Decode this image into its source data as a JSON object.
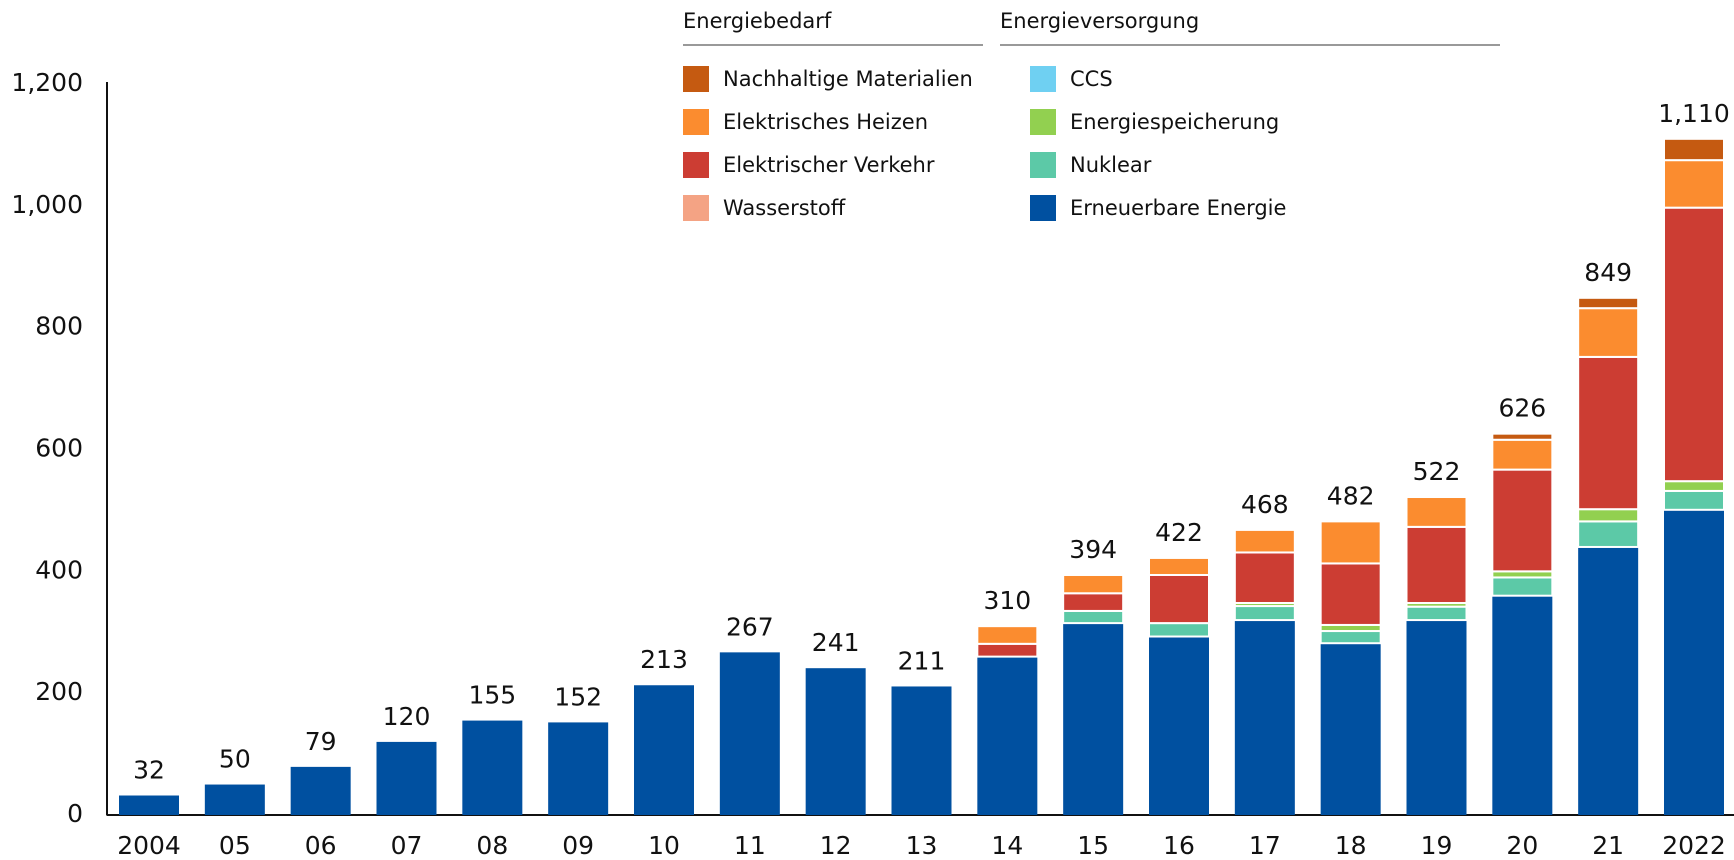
{
  "chart_data": {
    "type": "stacked_bar",
    "categories": [
      "2004",
      "05",
      "06",
      "07",
      "08",
      "09",
      "10",
      "11",
      "12",
      "13",
      "14",
      "15",
      "16",
      "17",
      "18",
      "19",
      "20",
      "21",
      "2022"
    ],
    "series": [
      {
        "name": "Erneuerbare Energie",
        "color": "#0050a0",
        "values": [
          32,
          50,
          79,
          120,
          155,
          152,
          213,
          267,
          241,
          211,
          260,
          315,
          293,
          320,
          282,
          320,
          360,
          440,
          501
        ]
      },
      {
        "name": "Nuklear",
        "color": "#5cc9a7",
        "values": [
          0,
          0,
          0,
          0,
          0,
          0,
          0,
          0,
          0,
          0,
          0,
          20,
          22,
          23,
          20,
          22,
          30,
          42,
          31
        ]
      },
      {
        "name": "Energiespeicherung",
        "color": "#92d050",
        "values": [
          0,
          0,
          0,
          0,
          0,
          0,
          0,
          0,
          0,
          0,
          0,
          0,
          0,
          5,
          10,
          6,
          10,
          20,
          16
        ]
      },
      {
        "name": "CCS",
        "color": "#6fd0f2",
        "values": [
          0,
          0,
          0,
          0,
          0,
          0,
          0,
          0,
          0,
          0,
          0,
          0,
          0,
          0,
          0,
          0,
          0,
          0,
          0
        ]
      },
      {
        "name": "Wasserstoff",
        "color": "#f4a384",
        "values": [
          0,
          0,
          0,
          0,
          0,
          0,
          0,
          0,
          0,
          0,
          0,
          0,
          0,
          0,
          0,
          0,
          0,
          0,
          0
        ]
      },
      {
        "name": "Elektrischer Verkehr",
        "color": "#cc3d33",
        "values": [
          0,
          0,
          0,
          0,
          0,
          0,
          0,
          0,
          0,
          0,
          21,
          29,
          79,
          83,
          101,
          125,
          167,
          250,
          449
        ]
      },
      {
        "name": "Elektrisches Heizen",
        "color": "#fb8c2f",
        "values": [
          0,
          0,
          0,
          0,
          0,
          0,
          0,
          0,
          0,
          0,
          29,
          30,
          28,
          37,
          69,
          49,
          49,
          80,
          78
        ]
      },
      {
        "name": "Nachhaltige Materialien",
        "color": "#c55a11",
        "values": [
          0,
          0,
          0,
          0,
          0,
          0,
          0,
          0,
          0,
          0,
          0,
          0,
          0,
          0,
          0,
          0,
          10,
          17,
          35
        ]
      }
    ],
    "total_labels": [
      "32",
      "50",
      "79",
      "120",
      "155",
      "152",
      "213",
      "267",
      "241",
      "211",
      "310",
      "394",
      "422",
      "468",
      "482",
      "522",
      "626",
      "849",
      "1,110"
    ],
    "legend_groups": [
      {
        "title": "Energiebedarf",
        "items": [
          7,
          6,
          5,
          4
        ]
      },
      {
        "title": "Energieversorgung",
        "items": [
          3,
          2,
          1,
          0
        ]
      }
    ],
    "ylim": [
      0,
      1200
    ],
    "yticks": [
      0,
      200,
      400,
      600,
      800,
      {
        "value": 1000,
        "label": "1,000"
      },
      {
        "value": 1200,
        "label": "1,200"
      }
    ]
  }
}
